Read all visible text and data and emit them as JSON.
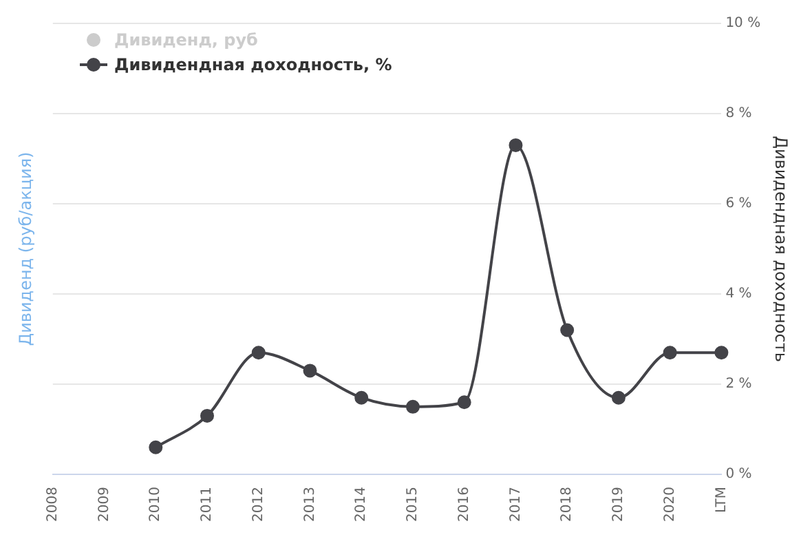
{
  "chart_data": {
    "type": "line",
    "categories": [
      "2008",
      "2009",
      "2010",
      "2011",
      "2012",
      "2013",
      "2014",
      "2015",
      "2016",
      "2017",
      "2018",
      "2019",
      "2020",
      "LTM"
    ],
    "ylabel": "Дивиденд (руб/акция)",
    "y2label": "Дивидендная доходность",
    "series": [
      {
        "name": "Дивиденд, руб",
        "color": "#cccccc",
        "axis": "y",
        "values": [
          null,
          null,
          null,
          null,
          null,
          null,
          null,
          null,
          null,
          null,
          null,
          null,
          null,
          null
        ]
      },
      {
        "name": "Дивидендная доходность, %",
        "color": "#434348",
        "axis": "y2",
        "values": [
          null,
          null,
          0.6,
          1.3,
          2.7,
          2.3,
          1.7,
          1.5,
          1.6,
          7.3,
          3.2,
          1.7,
          2.7,
          2.7
        ]
      }
    ],
    "y2lim": [
      0,
      10
    ],
    "y2ticks": [
      {
        "value": 0,
        "label": "0 %"
      },
      {
        "value": 2,
        "label": "2 %"
      },
      {
        "value": 4,
        "label": "4 %"
      },
      {
        "value": 6,
        "label": "6 %"
      },
      {
        "value": 8,
        "label": "8 %"
      },
      {
        "value": 10,
        "label": "10 %"
      }
    ],
    "grid": "y",
    "legend": "top left",
    "marker": "circle",
    "line_style": "solid"
  }
}
